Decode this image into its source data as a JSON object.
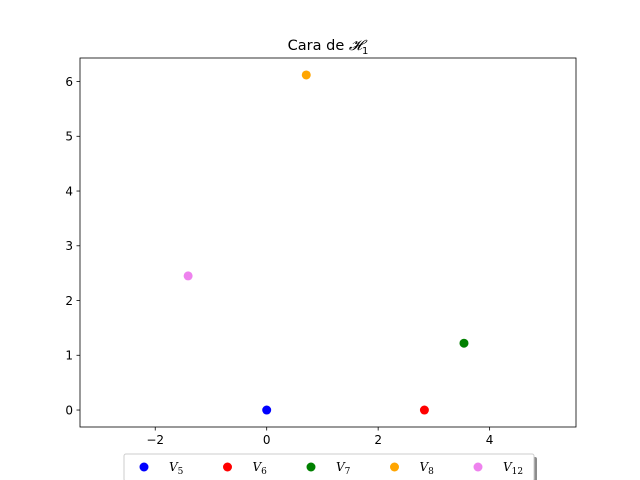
{
  "chart_data": {
    "type": "scatter",
    "title": "Cara de 𝓗₁",
    "title_parts": {
      "text": "Cara de ",
      "symbol": "𝓗",
      "subscript": "1"
    },
    "xlabel": "",
    "ylabel": "",
    "xlim": [
      -3.35,
      5.55
    ],
    "ylim": [
      -0.31,
      6.43
    ],
    "xticks": [
      -2,
      0,
      2,
      4
    ],
    "xtick_labels": [
      "−2",
      "0",
      "2",
      "4"
    ],
    "yticks": [
      0,
      1,
      2,
      3,
      4,
      5,
      6
    ],
    "ytick_labels": [
      "0",
      "1",
      "2",
      "3",
      "4",
      "5",
      "6"
    ],
    "grid": false,
    "legend_position": "bottom-center",
    "series": [
      {
        "name": "V5",
        "label_main": "V",
        "label_sub": "5",
        "color": "#0000ff",
        "x": 0.0,
        "y": 0.0
      },
      {
        "name": "V6",
        "label_main": "V",
        "label_sub": "6",
        "color": "#ff0000",
        "x": 2.83,
        "y": 0.0
      },
      {
        "name": "V7",
        "label_main": "V",
        "label_sub": "7",
        "color": "#008000",
        "x": 3.54,
        "y": 1.22
      },
      {
        "name": "V8",
        "label_main": "V",
        "label_sub": "8",
        "color": "#ffa500",
        "x": 0.71,
        "y": 6.12
      },
      {
        "name": "V12",
        "label_main": "V",
        "label_sub": "12",
        "color": "#ee82ee",
        "x": -1.41,
        "y": 2.45
      }
    ]
  }
}
